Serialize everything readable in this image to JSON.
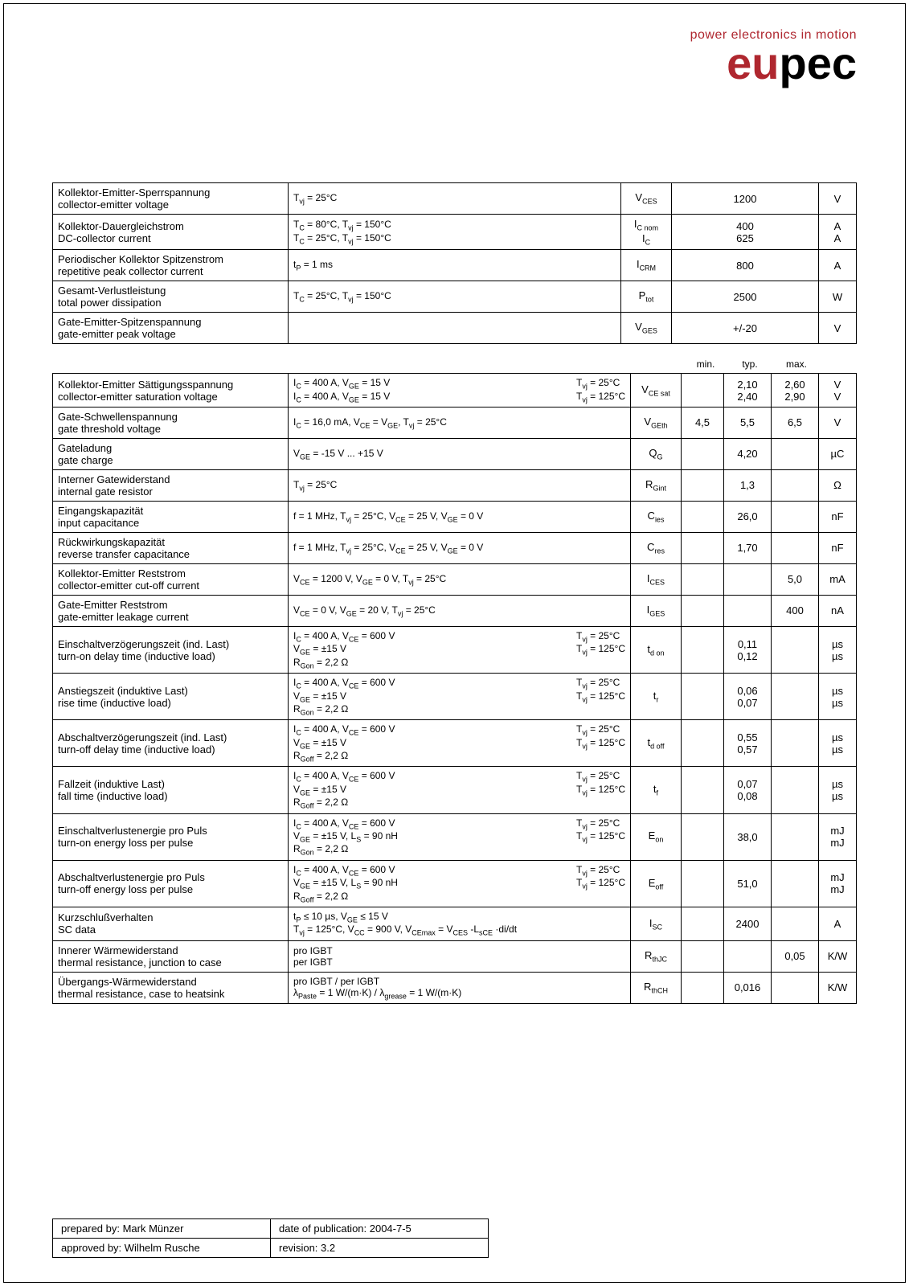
{
  "brand": {
    "tagline": "power electronics in motion",
    "logo_red": "eu",
    "logo_black": "pec"
  },
  "footer": {
    "prepared_label": "prepared by: Mark Münzer",
    "date_label": "date of publication: 2004-7-5",
    "approved_label": "approved by: Wilhelm Rusche",
    "rev_label": "revision: 3.2"
  },
  "table1": [
    {
      "de": "Kollektor-Emitter-Sperrspannung",
      "en": "collector-emitter voltage",
      "cond": "Tᵥⱼ = 25°C",
      "sym": "V_CES",
      "val": "1200",
      "unit": "V"
    },
    {
      "de": "Kollektor-Dauergleichstrom",
      "en": "DC-collector current",
      "cond": "T_C = 80°C, Tᵥⱼ = 150°C\nT_C = 25°C, Tᵥⱼ = 150°C",
      "sym": "I_C nom\nI_C",
      "val": "400\n625",
      "unit": "A\nA"
    },
    {
      "de": "Periodischer Kollektor Spitzenstrom",
      "en": "repetitive peak collector current",
      "cond": "t_P = 1 ms",
      "sym": "I_CRM",
      "val": "800",
      "unit": "A"
    },
    {
      "de": "Gesamt-Verlustleistung",
      "en": "total power dissipation",
      "cond": "T_C = 25°C, Tᵥⱼ = 150°C",
      "sym": "P_tot",
      "val": "2500",
      "unit": "W"
    },
    {
      "de": "Gate-Emitter-Spitzenspannung",
      "en": "gate-emitter peak voltage",
      "cond": "",
      "sym": "V_GES",
      "val": "+/-20",
      "unit": "V"
    }
  ],
  "hdr2": {
    "min": "min.",
    "typ": "typ.",
    "max": "max."
  },
  "table2": [
    {
      "de": "Kollektor-Emitter Sättigungsspannung",
      "en": "collector-emitter saturation voltage",
      "cond": "I_C = 400 A, V_GE = 15 V\nI_C = 400 A, V_GE = 15 V",
      "c2": "Tᵥⱼ = 25°C\nTᵥⱼ = 125°C",
      "sym": "V_CE sat",
      "min": "",
      "typ": "2,10\n2,40",
      "max": "2,60\n2,90",
      "unit": "V\nV"
    },
    {
      "de": "Gate-Schwellenspannung",
      "en": "gate threshold voltage",
      "cond": "I_C = 16,0 mA, V_CE = V_GE, Tᵥⱼ = 25°C",
      "c2": "",
      "sym": "V_GEth",
      "min": "4,5",
      "typ": "5,5",
      "max": "6,5",
      "unit": "V"
    },
    {
      "de": "Gateladung",
      "en": "gate charge",
      "cond": "V_GE = -15 V ... +15 V",
      "c2": "",
      "sym": "Q_G",
      "min": "",
      "typ": "4,20",
      "max": "",
      "unit": "µC"
    },
    {
      "de": "Interner Gatewiderstand",
      "en": "internal gate resistor",
      "cond": "Tᵥⱼ = 25°C",
      "c2": "",
      "sym": "R_Gint",
      "min": "",
      "typ": "1,3",
      "max": "",
      "unit": "Ω"
    },
    {
      "de": "Eingangskapazität",
      "en": "input capacitance",
      "cond": "f = 1 MHz, Tᵥⱼ = 25°C, V_CE = 25 V, V_GE = 0 V",
      "c2": "",
      "sym": "C_ies",
      "min": "",
      "typ": "26,0",
      "max": "",
      "unit": "nF"
    },
    {
      "de": "Rückwirkungskapazität",
      "en": "reverse transfer capacitance",
      "cond": "f = 1 MHz, Tᵥⱼ = 25°C, V_CE = 25 V, V_GE = 0 V",
      "c2": "",
      "sym": "C_res",
      "min": "",
      "typ": "1,70",
      "max": "",
      "unit": "nF"
    },
    {
      "de": "Kollektor-Emitter Reststrom",
      "en": "collector-emitter cut-off current",
      "cond": "V_CE = 1200 V, V_GE = 0 V, Tᵥⱼ = 25°C",
      "c2": "",
      "sym": "I_CES",
      "min": "",
      "typ": "",
      "max": "5,0",
      "unit": "mA"
    },
    {
      "de": "Gate-Emitter Reststrom",
      "en": "gate-emitter leakage current",
      "cond": "V_CE = 0 V, V_GE = 20 V, Tᵥⱼ = 25°C",
      "c2": "",
      "sym": "I_GES",
      "min": "",
      "typ": "",
      "max": "400",
      "unit": "nA"
    },
    {
      "de": "Einschaltverzögerungszeit (ind. Last)",
      "en": "turn-on delay time (inductive load)",
      "cond": "I_C = 400 A, V_CE = 600 V\nV_GE = ±15 V\nR_Gon = 2,2 Ω",
      "c2": "Tᵥⱼ = 25°C\nTᵥⱼ = 125°C",
      "sym": "t_d on",
      "min": "",
      "typ": "0,11\n0,12",
      "max": "",
      "unit": "µs\nµs"
    },
    {
      "de": "Anstiegszeit (induktive Last)",
      "en": "rise time (inductive load)",
      "cond": "I_C = 400 A, V_CE = 600 V\nV_GE = ±15 V\nR_Gon = 2,2 Ω",
      "c2": "Tᵥⱼ = 25°C\nTᵥⱼ = 125°C",
      "sym": "t_r",
      "min": "",
      "typ": "0,06\n0,07",
      "max": "",
      "unit": "µs\nµs"
    },
    {
      "de": "Abschaltverzögerungszeit (ind. Last)",
      "en": "turn-off delay time (inductive load)",
      "cond": "I_C = 400 A, V_CE = 600 V\nV_GE = ±15 V\nR_Goff = 2,2 Ω",
      "c2": "Tᵥⱼ = 25°C\nTᵥⱼ = 125°C",
      "sym": "t_d off",
      "min": "",
      "typ": "0,55\n0,57",
      "max": "",
      "unit": "µs\nµs"
    },
    {
      "de": "Fallzeit (induktive Last)",
      "en": "fall time (inductive load)",
      "cond": "I_C = 400 A, V_CE = 600 V\nV_GE = ±15 V\nR_Goff = 2,2 Ω",
      "c2": "Tᵥⱼ = 25°C\nTᵥⱼ = 125°C",
      "sym": "t_f",
      "min": "",
      "typ": "0,07\n0,08",
      "max": "",
      "unit": "µs\nµs"
    },
    {
      "de": "Einschaltverlustenergie pro Puls",
      "en": "turn-on energy loss per pulse",
      "cond": "I_C = 400 A, V_CE = 600 V\nV_GE = ±15 V, L_S = 90 nH\nR_Gon = 2,2 Ω",
      "c2": "Tᵥⱼ = 25°C\nTᵥⱼ = 125°C",
      "sym": "E_on",
      "min": "",
      "typ": "38,0",
      "max": "",
      "unit": "mJ\nmJ"
    },
    {
      "de": "Abschaltverlustenergie pro Puls",
      "en": "turn-off energy loss per pulse",
      "cond": "I_C = 400 A, V_CE = 600 V\nV_GE = ±15 V, L_S = 90 nH\nR_Goff = 2,2 Ω",
      "c2": "Tᵥⱼ = 25°C\nTᵥⱼ = 125°C",
      "sym": "E_off",
      "min": "",
      "typ": "51,0",
      "max": "",
      "unit": "mJ\nmJ"
    },
    {
      "de": "Kurzschlußverhalten",
      "en": "SC data",
      "cond": "t_P ≤ 10 µs, V_GE ≤ 15 V\nTᵥⱼ = 125°C, V_CC = 900 V, V_CEmax = V_CES -L_sCE ·di/dt",
      "c2": "",
      "sym": "I_SC",
      "min": "",
      "typ": "2400",
      "max": "",
      "unit": "A"
    },
    {
      "de": "Innerer Wärmewiderstand",
      "en": "thermal resistance, junction to case",
      "cond": "pro IGBT\nper IGBT",
      "c2": "",
      "sym": "R_thJC",
      "min": "",
      "typ": "",
      "max": "0,05",
      "unit": "K/W"
    },
    {
      "de": "Übergangs-Wärmewiderstand",
      "en": "thermal resistance, case to heatsink",
      "cond": "pro IGBT / per IGBT\nλ_Paste = 1 W/(m·K)   /   λ_grease = 1 W/(m·K)",
      "c2": "",
      "sym": "R_thCH",
      "min": "",
      "typ": "0,016",
      "max": "",
      "unit": "K/W"
    }
  ]
}
